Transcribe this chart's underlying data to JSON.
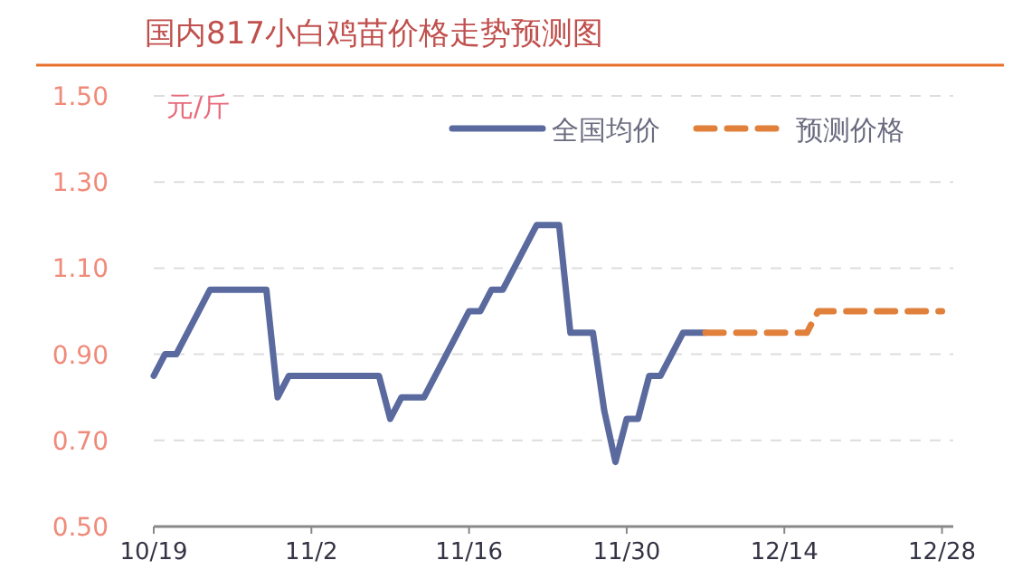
{
  "chart_data": {
    "type": "line",
    "title": "国内817小白鸡苗价格走势预测图",
    "ylabel": "元/斤",
    "xlim": [
      "--10-19",
      "--12-29"
    ],
    "xticks": [
      {
        "value": "--10-19",
        "label": "10/19"
      },
      {
        "value": "--11-02",
        "label": "11/2"
      },
      {
        "value": "--11-16",
        "label": "11/16"
      },
      {
        "value": "--11-30",
        "label": "11/30"
      },
      {
        "value": "--12-14",
        "label": "12/14"
      },
      {
        "value": "--12-28",
        "label": "12/28"
      }
    ],
    "ylim": [
      0.5,
      1.5
    ],
    "yticks": [
      {
        "value": 0.5,
        "label": "0.50"
      },
      {
        "value": 0.7,
        "label": "0.70"
      },
      {
        "value": 0.9,
        "label": "0.90"
      },
      {
        "value": 1.1,
        "label": "1.10"
      },
      {
        "value": 1.3,
        "label": "1.30"
      },
      {
        "value": 1.5,
        "label": "1.50"
      }
    ],
    "grid": "y",
    "legend": "top right",
    "marker": "none",
    "series": [
      {
        "name": "全国均价",
        "color": "#5a6a9e",
        "line_style": "solid",
        "x": [
          "--10-19",
          "--10-20",
          "--10-21",
          "--10-24",
          "--10-29",
          "--10-30",
          "--10-31",
          "--11-08",
          "--11-09",
          "--11-10",
          "--11-12",
          "--11-14",
          "--11-16",
          "--11-17",
          "--11-18",
          "--11-19",
          "--11-21",
          "--11-22",
          "--11-24",
          "--11-25",
          "--11-27",
          "--11-28",
          "--11-29",
          "--11-30",
          "--12-01",
          "--12-02",
          "--12-03",
          "--12-05",
          "--12-07"
        ],
        "values": [
          0.85,
          0.9,
          0.9,
          1.05,
          1.05,
          0.8,
          0.85,
          0.85,
          0.75,
          0.8,
          0.8,
          0.9,
          1.0,
          1.0,
          1.05,
          1.05,
          1.15,
          1.2,
          1.2,
          0.95,
          0.95,
          0.77,
          0.65,
          0.75,
          0.75,
          0.85,
          0.85,
          0.95,
          0.95
        ]
      },
      {
        "name": "预测价格",
        "color": "#e0803a",
        "line_style": "dashed",
        "x": [
          "--12-07",
          "--12-16",
          "--12-17",
          "--12-28"
        ],
        "values": [
          0.95,
          0.95,
          1.0,
          1.0
        ]
      }
    ]
  }
}
